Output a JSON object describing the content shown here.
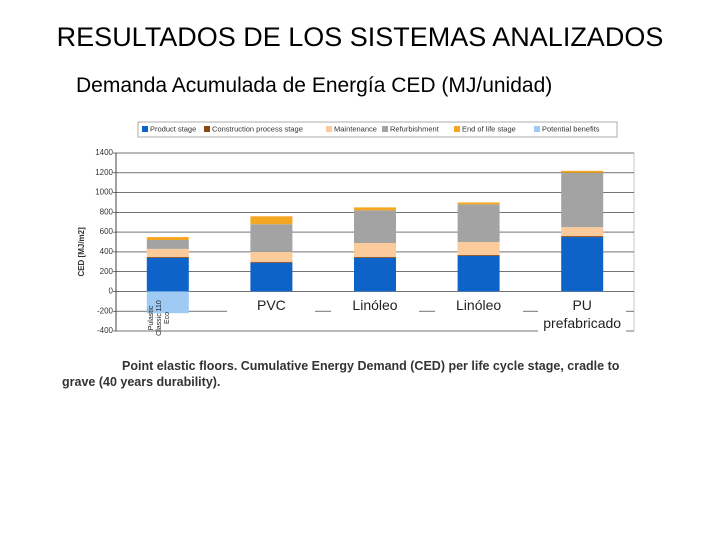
{
  "header": {
    "title": "RESULTADOS DE LOS SISTEMAS ANALIZADOS",
    "subtitle": "Demanda Acumulada de Energía CED (MJ/unidad)"
  },
  "chart_data": {
    "type": "bar",
    "stacked": true,
    "y_label": "CED [MJ/m2]",
    "caption": "Point elastic floors. Cumulative Energy Demand (CED) per life cycle stage, cradle to grave (40 years durability).",
    "categories": [
      "Pulastic Classic 110 Eco",
      "PVC",
      "Linóleo",
      "Linóleo",
      "PU prefabricado"
    ],
    "series": [
      {
        "name": "Product stage",
        "color": "#0e63c9",
        "values": [
          340,
          290,
          340,
          360,
          550
        ]
      },
      {
        "name": "Construction process stage",
        "color": "#8b4a14",
        "values": [
          10,
          10,
          10,
          10,
          10
        ]
      },
      {
        "name": "Maintenance",
        "color": "#fbcb9c",
        "values": [
          80,
          100,
          140,
          130,
          90
        ]
      },
      {
        "name": "Refurbishment",
        "color": "#a3a3a3",
        "values": [
          90,
          280,
          330,
          380,
          550
        ]
      },
      {
        "name": "End of life stage",
        "color": "#f5a623",
        "values": [
          30,
          80,
          30,
          20,
          20
        ]
      },
      {
        "name": "Potential benefits",
        "color": "#9fcaf3",
        "values": [
          -220,
          0,
          0,
          0,
          0
        ]
      }
    ],
    "ylim": [
      -400,
      1400
    ],
    "yticks": [
      -400,
      -200,
      0,
      200,
      400,
      600,
      800,
      1000,
      1200,
      1400
    ],
    "grid": true
  }
}
